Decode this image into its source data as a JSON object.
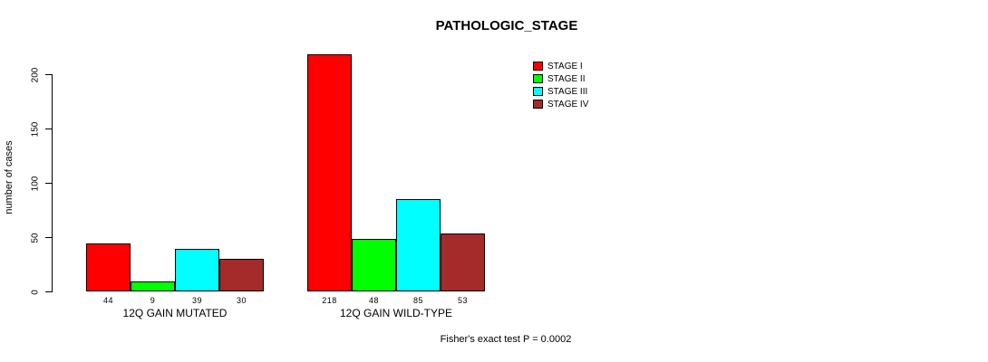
{
  "chart_data": {
    "type": "bar",
    "title": "PATHOLOGIC_STAGE",
    "xlabel": "",
    "ylabel": "number of cases",
    "ylim": [
      0,
      200
    ],
    "yticks": [
      0,
      50,
      100,
      150,
      200
    ],
    "grid": false,
    "legend_position": "top-right",
    "categories": [
      "12Q GAIN MUTATED",
      "12Q GAIN WILD-TYPE"
    ],
    "series": [
      {
        "name": "STAGE I",
        "color": "#ff0000",
        "values": [
          44,
          218
        ]
      },
      {
        "name": "STAGE II",
        "color": "#00ff00",
        "values": [
          9,
          48
        ]
      },
      {
        "name": "STAGE III",
        "color": "#00ffff",
        "values": [
          39,
          85
        ]
      },
      {
        "name": "STAGE IV",
        "color": "#a52a2a",
        "values": [
          30,
          53
        ]
      }
    ],
    "bar_value_labels": [
      [
        44,
        9,
        39,
        30
      ],
      [
        218,
        48,
        85,
        53
      ]
    ],
    "annotation": "Fisher's exact test P = 0.0002"
  }
}
